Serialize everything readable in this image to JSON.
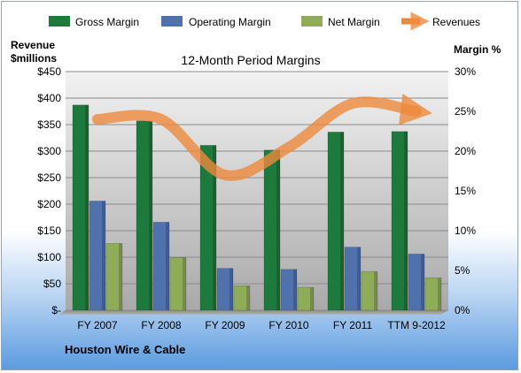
{
  "chart_data": {
    "type": "bar",
    "title": "12-Month Period Margins",
    "left_axis_title": [
      "Revenue",
      "$millions"
    ],
    "right_axis_title": "Margin %",
    "categories": [
      "FY 2007",
      "FY 2008",
      "FY 2009",
      "FY 2010",
      "FY 2011",
      "TTM 9-2012"
    ],
    "left_ticks": [
      "$-",
      "$50",
      "$100",
      "$150",
      "$200",
      "$250",
      "$300",
      "$350",
      "$400",
      "$450"
    ],
    "right_ticks": [
      "0%",
      "5%",
      "10%",
      "15%",
      "20%",
      "25%",
      "30%"
    ],
    "ylim_left": [
      0,
      450
    ],
    "ylim_right": [
      0,
      30
    ],
    "series": [
      {
        "name": "Gross Margin",
        "type": "bar",
        "axis": "left",
        "color": "#1e7a3c",
        "values": [
          387,
          357,
          311,
          302,
          336,
          337
        ]
      },
      {
        "name": "Operating Margin",
        "type": "bar",
        "axis": "left",
        "color": "#4f72ad",
        "values": [
          206,
          166,
          79,
          77,
          119,
          106
        ]
      },
      {
        "name": "Net Margin",
        "type": "bar",
        "axis": "left",
        "color": "#8fac58",
        "values": [
          126,
          99,
          46,
          43,
          73,
          61
        ]
      },
      {
        "name": "Revenues",
        "type": "line",
        "axis": "right",
        "color": "#ee8a3c",
        "values": [
          24,
          24,
          17,
          20.5,
          26,
          25
        ]
      }
    ],
    "legend_position": "top",
    "grid": true
  },
  "company": "Houston Wire & Cable"
}
